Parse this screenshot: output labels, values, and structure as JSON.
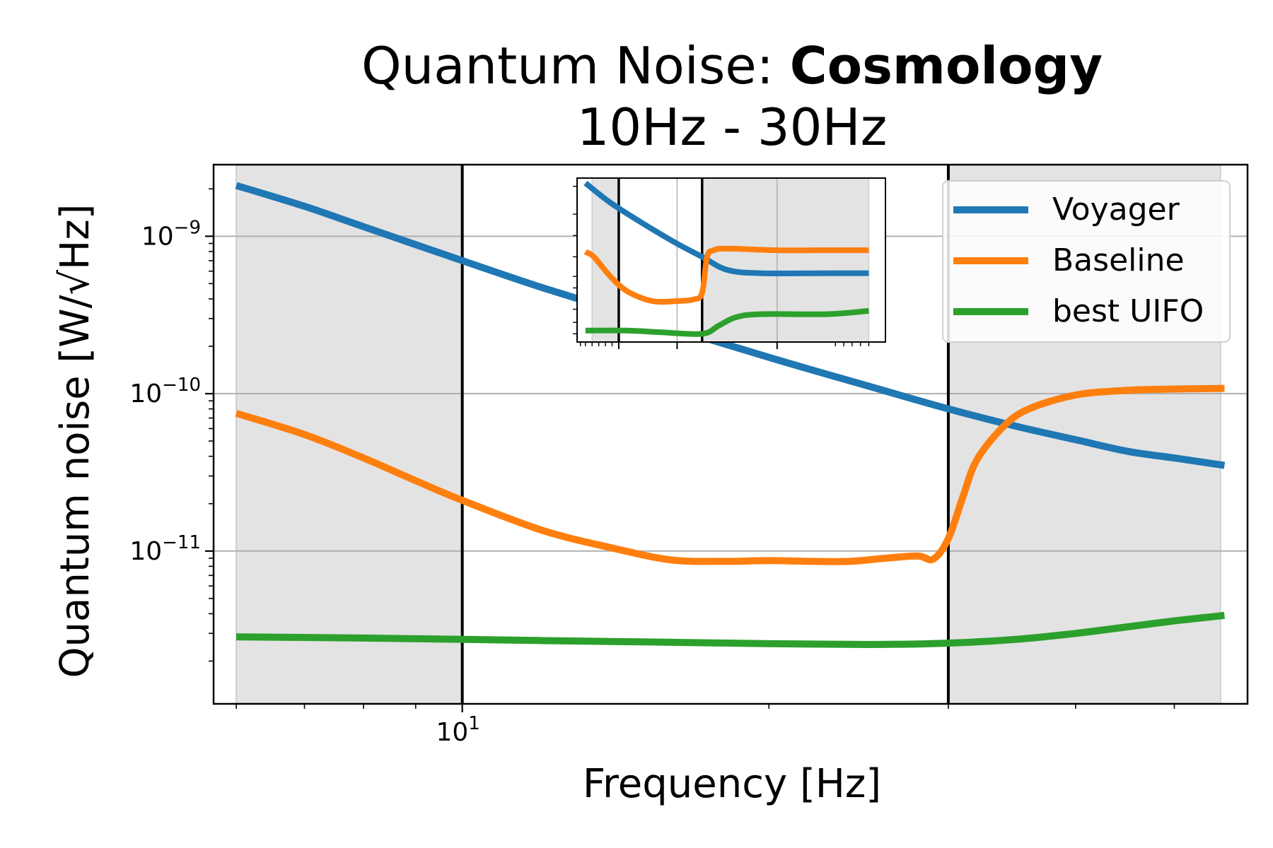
{
  "chart_data": {
    "type": "line",
    "title_prefix": "Quantum Noise: ",
    "title_bold": "Cosmology",
    "subtitle": "10Hz - 30Hz",
    "xlabel": "Frequency [Hz]",
    "ylabel": "Quantum noise [W/√Hz]",
    "x_scale": "log",
    "y_scale": "log",
    "xlim": [
      5.7,
      59
    ],
    "ylim": [
      1.07e-12,
      2.85e-09
    ],
    "grid": true,
    "legend_position": "upper right",
    "x_tick_labels": [
      {
        "value": 10,
        "label": "10^1"
      }
    ],
    "y_tick_labels": [
      {
        "value": 1e-09,
        "label": "10^-9"
      },
      {
        "value": 1e-10,
        "label": "10^-10"
      },
      {
        "value": 1e-11,
        "label": "10^-11"
      }
    ],
    "shaded_regions": [
      [
        6.0,
        10
      ],
      [
        30,
        55.5
      ]
    ],
    "vertical_lines": [
      10,
      30
    ],
    "series": [
      {
        "name": "Voyager",
        "color": "#1f77b4",
        "x": [
          6.0,
          7,
          8,
          10,
          12,
          15,
          20,
          25,
          30,
          35,
          40,
          45,
          50,
          56
        ],
        "y": [
          2.1e-09,
          1.55e-09,
          1.15e-09,
          7e-10,
          4.7e-10,
          3e-10,
          1.7e-10,
          1.12e-10,
          8e-11,
          6.2e-11,
          5.1e-11,
          4.3e-11,
          3.9e-11,
          3.5e-11
        ]
      },
      {
        "name": "Baseline",
        "color": "#ff7f0e",
        "x": [
          6.0,
          7,
          8,
          9,
          10,
          12,
          14,
          16,
          18,
          20,
          22,
          24,
          26,
          28,
          29,
          30,
          31,
          32,
          34,
          36,
          40,
          45,
          50,
          56
        ],
        "y": [
          7.5e-11,
          5.5e-11,
          3.9e-11,
          2.8e-11,
          2.1e-11,
          1.35e-11,
          1.05e-11,
          8.8e-12,
          8.6e-12,
          8.7e-12,
          8.6e-12,
          8.6e-12,
          9e-12,
          9.3e-12,
          8.9e-12,
          1.2e-11,
          2.2e-11,
          3.8e-11,
          6.2e-11,
          8e-11,
          9.8e-11,
          1.05e-10,
          1.07e-10,
          1.08e-10
        ]
      },
      {
        "name": "best UIFO",
        "color": "#2ca02c",
        "x": [
          6.0,
          8,
          10,
          12,
          15,
          20,
          25,
          30,
          35,
          40,
          45,
          50,
          56
        ],
        "y": [
          2.85e-12,
          2.8e-12,
          2.75e-12,
          2.7e-12,
          2.65e-12,
          2.58e-12,
          2.55e-12,
          2.6e-12,
          2.75e-12,
          3e-12,
          3.3e-12,
          3.6e-12,
          3.9e-12
        ]
      }
    ],
    "inset": {
      "grid": true,
      "shaded_regions": [
        [
          1.09,
          2.75
        ]
      ],
      "vertical_lines": [
        1.25,
        1.75
      ],
      "series": [
        {
          "name": "Voyager",
          "color": "#1f77b4",
          "x": [
            1.05,
            1.2,
            1.4,
            1.6,
            1.75,
            1.9,
            2.1,
            2.5,
            2.75
          ],
          "y": [
            0.97,
            0.85,
            0.72,
            0.6,
            0.52,
            0.44,
            0.42,
            0.42,
            0.42
          ]
        },
        {
          "name": "Baseline",
          "color": "#ff7f0e",
          "x": [
            1.05,
            1.1,
            1.2,
            1.3,
            1.45,
            1.6,
            1.7,
            1.75,
            1.78,
            1.82,
            1.9,
            2.2,
            2.5,
            2.75
          ],
          "y": [
            0.55,
            0.52,
            0.4,
            0.31,
            0.25,
            0.25,
            0.26,
            0.3,
            0.52,
            0.56,
            0.57,
            0.56,
            0.56,
            0.56
          ]
        },
        {
          "name": "best UIFO",
          "color": "#2ca02c",
          "x": [
            1.05,
            1.3,
            1.5,
            1.75,
            1.85,
            1.95,
            2.1,
            2.5,
            2.75
          ],
          "y": [
            0.07,
            0.07,
            0.06,
            0.05,
            0.1,
            0.15,
            0.17,
            0.17,
            0.19
          ]
        }
      ]
    }
  }
}
